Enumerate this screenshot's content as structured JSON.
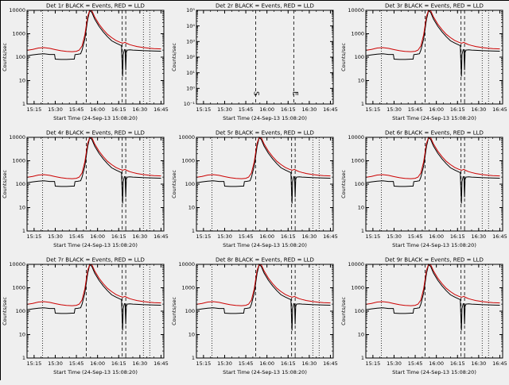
{
  "figure": {
    "background": "#efefef",
    "frame_color": "#000000"
  },
  "chart_data": {
    "type": "line",
    "layout": {
      "rows": 3,
      "cols": 3
    },
    "xlabel": "Start Time (24-Sep-13 15:08:20)",
    "ylabel": "Counts/sec",
    "x_range": [
      10,
      107
    ],
    "x_ticks": [
      {
        "t": 15,
        "label": "15:15"
      },
      {
        "t": 30,
        "label": "15:30"
      },
      {
        "t": 45,
        "label": "15:45"
      },
      {
        "t": 60,
        "label": "16:00"
      },
      {
        "t": 75,
        "label": "16:15"
      },
      {
        "t": 90,
        "label": "16:30"
      },
      {
        "t": 105,
        "label": "16:45"
      }
    ],
    "x_minor_step": 5,
    "colors": {
      "events": "#000000",
      "lld": "#cc0000"
    },
    "legend_note": "BLACK = Events, RED = LLD",
    "series_template": {
      "events": [
        [
          10,
          115
        ],
        [
          14,
          125
        ],
        [
          18,
          135
        ],
        [
          22,
          140
        ],
        [
          26,
          130
        ],
        [
          29.5,
          130
        ],
        [
          30,
          82
        ],
        [
          34,
          80
        ],
        [
          38,
          80
        ],
        [
          42,
          82
        ],
        [
          43.5,
          82
        ],
        [
          44,
          128
        ],
        [
          46,
          132
        ],
        [
          48,
          140
        ],
        [
          49,
          200
        ],
        [
          51,
          600
        ],
        [
          53,
          4000
        ],
        [
          54.5,
          10500
        ],
        [
          56,
          8000
        ],
        [
          58,
          4200
        ],
        [
          61,
          2100
        ],
        [
          64,
          1200
        ],
        [
          67,
          750
        ],
        [
          70,
          500
        ],
        [
          73,
          400
        ],
        [
          76,
          330
        ],
        [
          77,
          310
        ],
        [
          77.4,
          60
        ],
        [
          77.8,
          15
        ],
        [
          78.2,
          130
        ],
        [
          79,
          210
        ],
        [
          79.6,
          200
        ],
        [
          80,
          28
        ],
        [
          80.4,
          160
        ],
        [
          81,
          200
        ],
        [
          83,
          205
        ],
        [
          85,
          200
        ],
        [
          88,
          196
        ],
        [
          92,
          190
        ],
        [
          96,
          186
        ],
        [
          100,
          183
        ],
        [
          105,
          180
        ]
      ],
      "lld": [
        [
          10,
          195
        ],
        [
          14,
          215
        ],
        [
          18,
          245
        ],
        [
          22,
          255
        ],
        [
          26,
          238
        ],
        [
          30,
          210
        ],
        [
          34,
          188
        ],
        [
          38,
          176
        ],
        [
          42,
          172
        ],
        [
          45,
          178
        ],
        [
          47,
          200
        ],
        [
          49,
          300
        ],
        [
          51,
          900
        ],
        [
          53,
          5500
        ],
        [
          54.5,
          11500
        ],
        [
          56,
          9500
        ],
        [
          58,
          5200
        ],
        [
          61,
          2600
        ],
        [
          64,
          1500
        ],
        [
          67,
          950
        ],
        [
          70,
          680
        ],
        [
          73,
          520
        ],
        [
          76,
          430
        ],
        [
          78,
          395
        ],
        [
          79.5,
          430
        ],
        [
          81,
          380
        ],
        [
          83,
          340
        ],
        [
          85,
          315
        ],
        [
          88,
          285
        ],
        [
          92,
          260
        ],
        [
          96,
          243
        ],
        [
          100,
          232
        ],
        [
          105,
          225
        ]
      ]
    },
    "plots": [
      {
        "title": "Det 1r BLACK = Events, RED = LLD",
        "kind": "data",
        "y_range": [
          1,
          10000
        ],
        "y_label_map": {
          "0": "1",
          "1": "10",
          "2": "100",
          "3": "1000",
          "4": "10000"
        },
        "vlines_dotted": [
          21,
          92.5,
          97
        ],
        "vlines_dashed": [
          52,
          77.5,
          80
        ]
      },
      {
        "title": "Det 2r BLACK = Events, RED = LLD",
        "kind": "empty",
        "y_range": [
          0.1,
          100000
        ],
        "y_label_map": {
          "-1": "10⁻¹",
          "0": "10⁰",
          "1": "10¹",
          "2": "10²",
          "3": "10³",
          "4": "10⁴",
          "5": "10⁵"
        },
        "vlines_dotted": [],
        "vlines_dashed": [
          52,
          79
        ],
        "markers": [
          {
            "t": 51,
            "label": "S"
          },
          {
            "t": 78.5,
            "label": "E"
          }
        ]
      },
      {
        "title": "Det 3r BLACK = Events, RED = LLD",
        "kind": "data",
        "y_range": [
          1,
          10000
        ],
        "y_label_map": {
          "0": "1",
          "1": "10",
          "2": "100",
          "3": "1000",
          "4": "10000"
        },
        "vlines_dotted": [
          21,
          92.5,
          97
        ],
        "vlines_dashed": [
          52,
          77.5,
          80
        ]
      },
      {
        "title": "Det 4r BLACK = Events, RED = LLD",
        "kind": "data",
        "y_range": [
          1,
          10000
        ],
        "y_label_map": {
          "0": "1",
          "1": "10",
          "2": "100",
          "3": "1000",
          "4": "10000"
        },
        "vlines_dotted": [
          21,
          92.5,
          97
        ],
        "vlines_dashed": [
          52,
          77.5,
          80
        ]
      },
      {
        "title": "Det 5r BLACK = Events, RED = LLD",
        "kind": "data",
        "y_range": [
          1,
          10000
        ],
        "y_label_map": {
          "0": "1",
          "1": "10",
          "2": "100",
          "3": "1000",
          "4": "10000"
        },
        "vlines_dotted": [
          21,
          92.5,
          97
        ],
        "vlines_dashed": [
          52,
          77.5,
          80
        ]
      },
      {
        "title": "Det 6r BLACK = Events, RED = LLD",
        "kind": "data",
        "y_range": [
          1,
          10000
        ],
        "y_label_map": {
          "0": "1",
          "1": "10",
          "2": "100",
          "3": "1000",
          "4": "10000"
        },
        "vlines_dotted": [
          21,
          92.5,
          97
        ],
        "vlines_dashed": [
          52,
          77.5,
          80
        ]
      },
      {
        "title": "Det 7r BLACK = Events, RED = LLD",
        "kind": "data",
        "y_range": [
          1,
          10000
        ],
        "y_label_map": {
          "0": "1",
          "1": "10",
          "2": "100",
          "3": "1000",
          "4": "10000"
        },
        "vlines_dotted": [
          21,
          92.5,
          97
        ],
        "vlines_dashed": [
          52,
          77.5,
          80
        ]
      },
      {
        "title": "Det 8r BLACK = Events, RED = LLD",
        "kind": "data",
        "y_range": [
          1,
          10000
        ],
        "y_label_map": {
          "0": "1",
          "1": "10",
          "2": "100",
          "3": "1000",
          "4": "10000"
        },
        "vlines_dotted": [
          21,
          92.5,
          97
        ],
        "vlines_dashed": [
          52,
          77.5,
          80
        ]
      },
      {
        "title": "Det 9r BLACK = Events, RED = LLD",
        "kind": "data",
        "y_range": [
          1,
          10000
        ],
        "y_label_map": {
          "0": "1",
          "1": "10",
          "2": "100",
          "3": "1000",
          "4": "10000"
        },
        "vlines_dotted": [
          21,
          92.5,
          97
        ],
        "vlines_dashed": [
          52,
          77.5,
          80
        ]
      }
    ]
  }
}
